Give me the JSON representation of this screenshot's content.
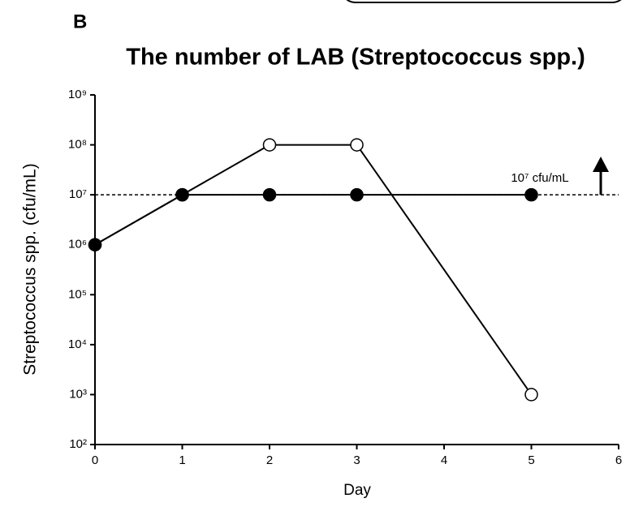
{
  "chart_data": {
    "type": "line",
    "panel_label": "B",
    "title": "The number of LAB (Streptococcus spp.)",
    "xlabel": "Day",
    "ylabel": "Streptococcus spp. (cfu/mL)",
    "x": [
      0,
      1,
      2,
      3,
      5
    ],
    "series": [
      {
        "color": "#000000",
        "marker_fill": "#ffffff",
        "values": [
          1000000,
          10000000,
          100000000,
          100000000,
          1000
        ]
      },
      {
        "color": "#000000",
        "marker_fill": "#000000",
        "values": [
          1000000,
          10000000,
          10000000,
          10000000,
          10000000
        ]
      }
    ],
    "xlim": [
      0,
      6
    ],
    "xticks": [
      0,
      1,
      2,
      3,
      4,
      5,
      6
    ],
    "ylim": [
      100,
      1000000000
    ],
    "log_y": true,
    "yticks": [
      {
        "value": 100,
        "label": "10²"
      },
      {
        "value": 1000,
        "label": "10³"
      },
      {
        "value": 10000,
        "label": "10⁴"
      },
      {
        "value": 100000,
        "label": "10⁵"
      },
      {
        "value": 1000000,
        "label": "10⁶"
      },
      {
        "value": 10000000,
        "label": "10⁷"
      },
      {
        "value": 100000000,
        "label": "10⁸"
      },
      {
        "value": 1000000000,
        "label": "10⁹"
      }
    ],
    "hline": 10000000,
    "annotation": "10⁷ cfu/mL"
  }
}
